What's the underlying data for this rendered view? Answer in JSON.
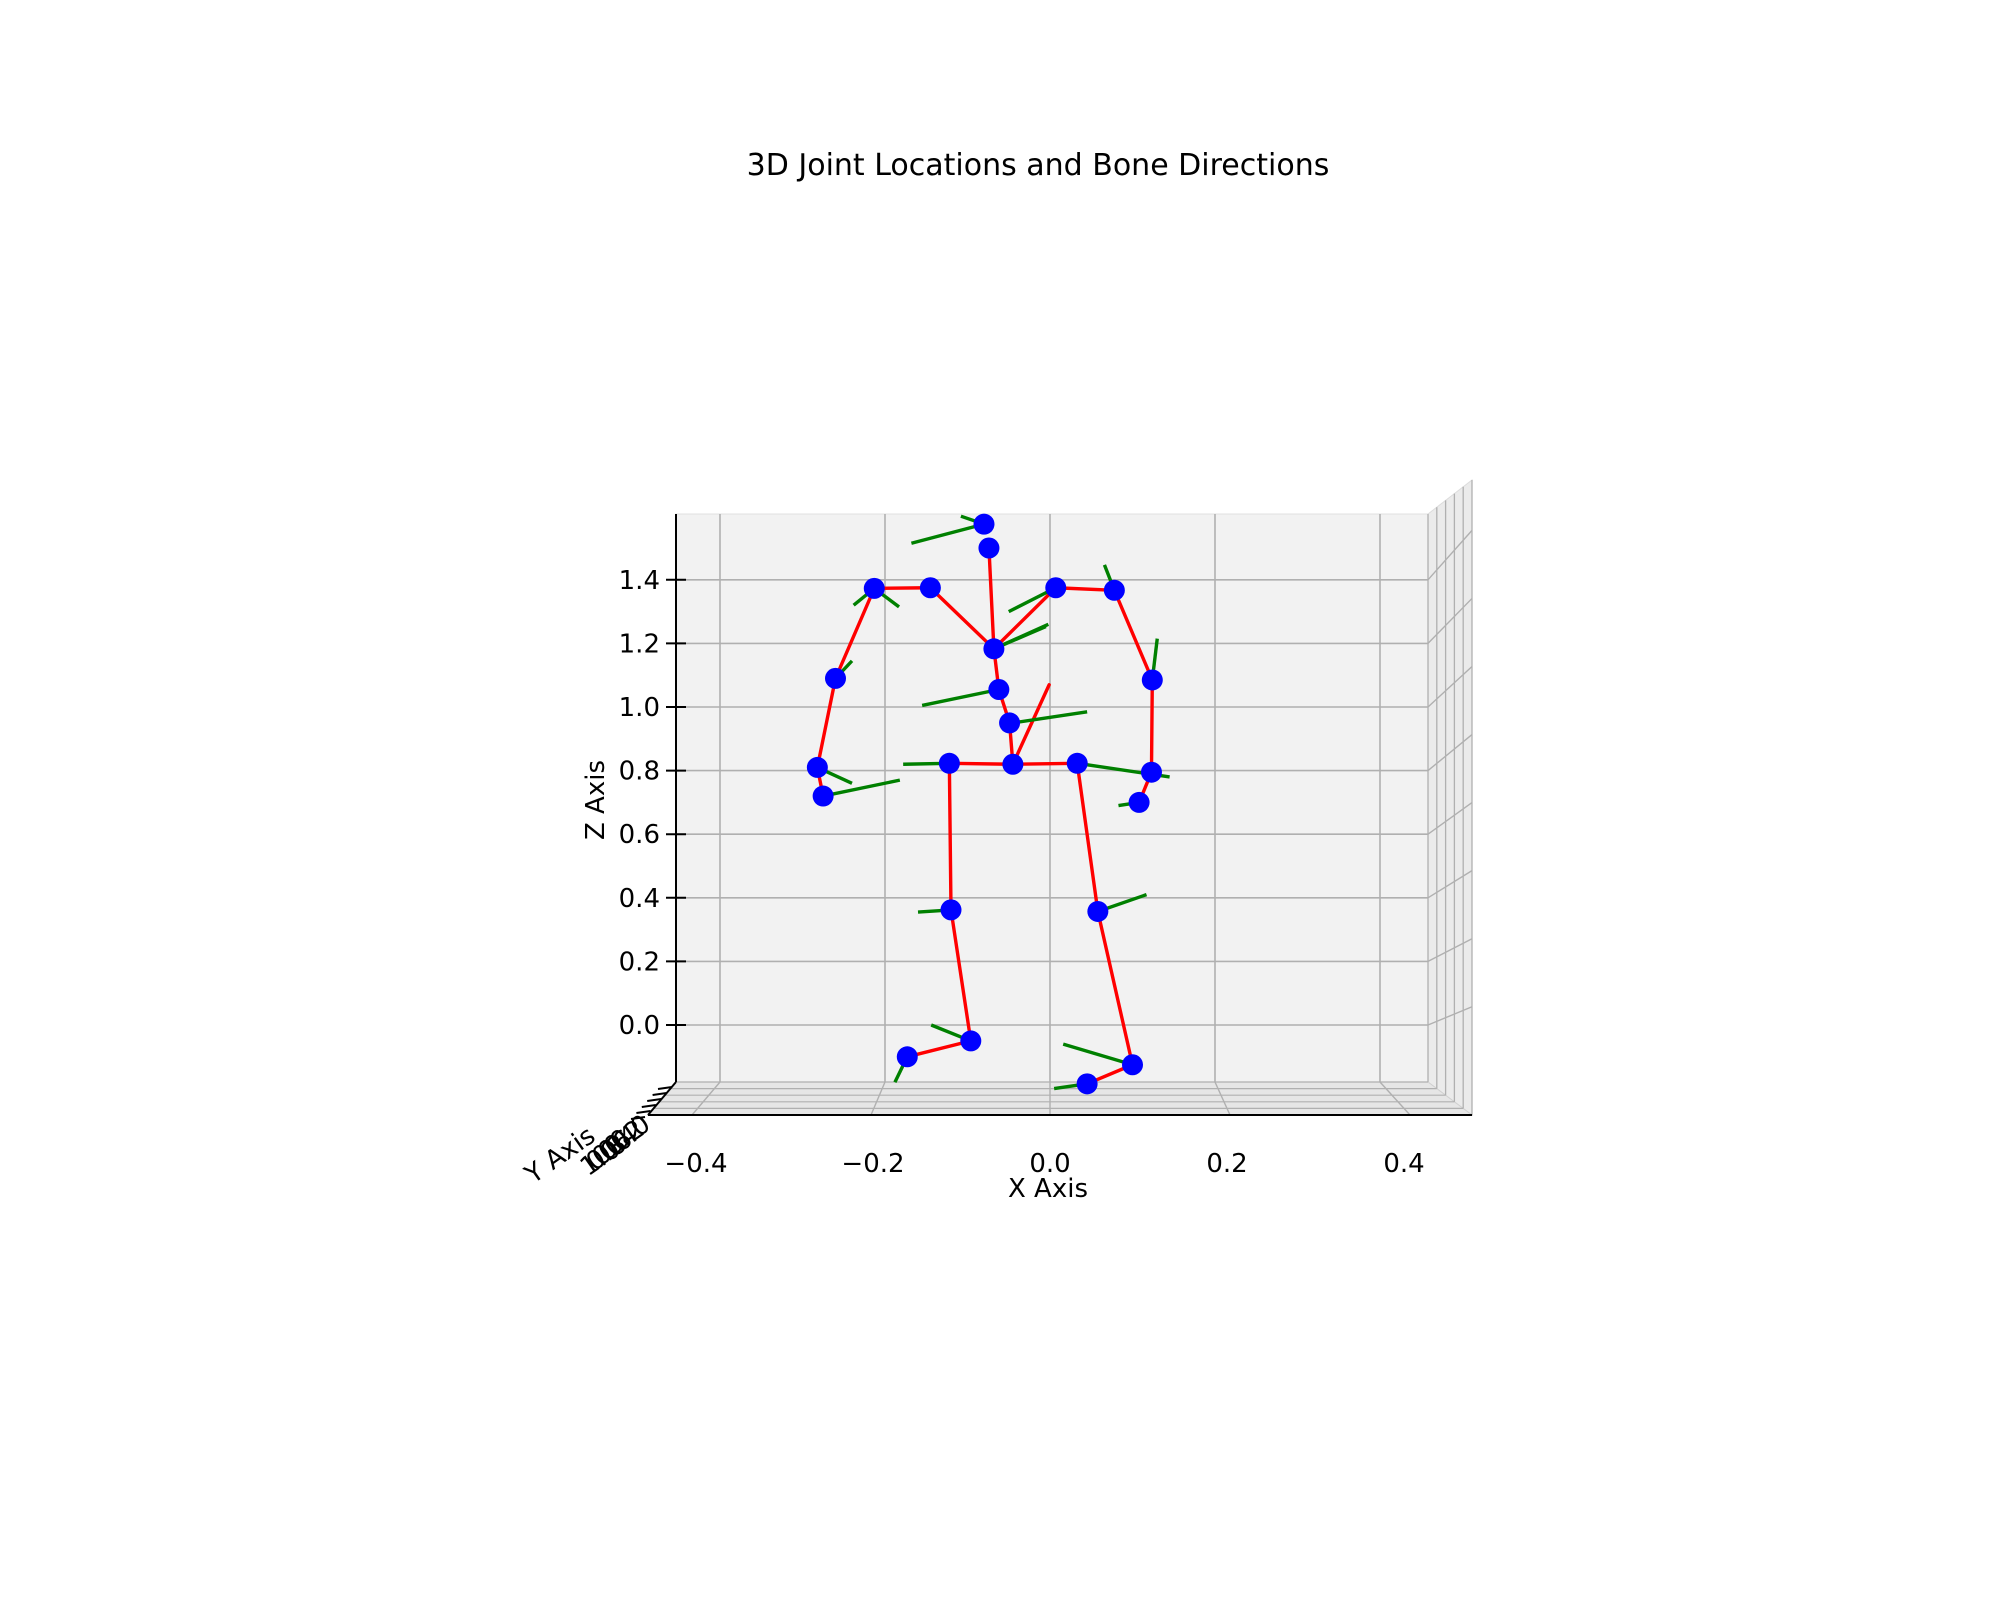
{
  "chart_data": {
    "type": "scatter",
    "projection": "3d",
    "title": "3D Joint Locations and Bone Directions",
    "xlabel": "X Axis",
    "ylabel": "Y Axis",
    "zlabel": "Z Axis",
    "xlim": [
      -0.46,
      0.46
    ],
    "zlim": [
      -0.2,
      1.6
    ],
    "x_ticks": [
      -0.4,
      -0.2,
      0.0,
      0.2,
      0.4
    ],
    "x_tick_labels": [
      "−0.4",
      "−0.2",
      "0.0",
      "0.2",
      "0.4"
    ],
    "z_ticks": [
      0.0,
      0.2,
      0.4,
      0.6,
      0.8,
      1.0,
      1.2,
      1.4
    ],
    "z_tick_labels": [
      "0.0",
      "0.2",
      "0.4",
      "0.6",
      "0.8",
      "1.0",
      "1.2",
      "1.4"
    ],
    "y_tick_labels": [
      "0.0",
      "0.2",
      "0.4",
      "0.6",
      "0.8",
      "1.0"
    ],
    "grid": true,
    "series": [
      {
        "kind": "joints",
        "color": "#0000ff",
        "points": [
          {
            "x": -0.045,
            "z": 0.82
          },
          {
            "x": -0.122,
            "z": 0.823
          },
          {
            "x": -0.12,
            "z": 0.362
          },
          {
            "x": -0.096,
            "z": -0.05
          },
          {
            "x": -0.173,
            "z": -0.1
          },
          {
            "x": 0.033,
            "z": 0.823
          },
          {
            "x": 0.058,
            "z": 0.357
          },
          {
            "x": 0.1,
            "z": -0.125
          },
          {
            "x": 0.045,
            "z": -0.185
          },
          {
            "x": -0.049,
            "z": 0.95
          },
          {
            "x": -0.062,
            "z": 1.055
          },
          {
            "x": -0.068,
            "z": 1.183
          },
          {
            "x": -0.074,
            "z": 1.5
          },
          {
            "x": -0.08,
            "z": 1.575
          },
          {
            "x": -0.145,
            "z": 1.375
          },
          {
            "x": -0.213,
            "z": 1.373
          },
          {
            "x": -0.26,
            "z": 1.09
          },
          {
            "x": -0.282,
            "z": 0.81
          },
          {
            "x": -0.275,
            "z": 0.72
          },
          {
            "x": 0.007,
            "z": 1.375
          },
          {
            "x": 0.078,
            "z": 1.367
          },
          {
            "x": 0.124,
            "z": 1.085
          },
          {
            "x": 0.123,
            "z": 0.795
          },
          {
            "x": 0.108,
            "z": 0.7
          }
        ]
      },
      {
        "kind": "bones",
        "color": "#ff0000",
        "segments": [
          [
            0,
            1
          ],
          [
            1,
            2
          ],
          [
            2,
            3
          ],
          [
            3,
            4
          ],
          [
            0,
            5
          ],
          [
            5,
            6
          ],
          [
            6,
            7
          ],
          [
            7,
            8
          ],
          [
            0,
            9
          ],
          [
            9,
            10
          ],
          [
            10,
            11
          ],
          [
            11,
            12
          ],
          [
            11,
            14
          ],
          [
            14,
            15
          ],
          [
            15,
            16
          ],
          [
            16,
            17
          ],
          [
            17,
            18
          ],
          [
            11,
            19
          ],
          [
            19,
            20
          ],
          [
            20,
            21
          ],
          [
            21,
            22
          ],
          [
            22,
            23
          ]
        ],
        "extra_segments": [
          {
            "from": {
              "x": -0.045,
              "z": 0.82
            },
            "to": {
              "x": -0.001,
              "z": 1.07
            }
          }
        ]
      },
      {
        "kind": "bone_directions",
        "color": "#008000",
        "segments": [
          {
            "from": {
              "x": -0.045,
              "z": 0.95
            },
            "to": {
              "x": 0.045,
              "z": 0.985
            }
          },
          {
            "x0": -0.062,
            "z0": 1.055,
            "x1": -0.155,
            "z1": 1.005
          },
          {
            "x0": -0.068,
            "z0": 1.183,
            "x1": -0.002,
            "z1": 1.26
          },
          {
            "x0": -0.068,
            "z0": 1.183,
            "x1": -0.005,
            "z1": 1.253
          },
          {
            "x0": -0.05,
            "z0": 1.3,
            "x1": 0.007,
            "z1": 1.375
          },
          {
            "x0": -0.08,
            "z0": 1.575,
            "x1": -0.168,
            "z1": 1.515
          },
          {
            "x0": -0.08,
            "z0": 1.575,
            "x1": -0.108,
            "z1": 1.6
          },
          {
            "x0": -0.213,
            "z0": 1.373,
            "x1": -0.238,
            "z1": 1.32
          },
          {
            "x0": -0.213,
            "z0": 1.373,
            "x1": -0.183,
            "z1": 1.315
          },
          {
            "x0": -0.26,
            "z0": 1.09,
            "x1": -0.24,
            "z1": 1.145
          },
          {
            "x0": -0.282,
            "z0": 0.81,
            "x1": -0.24,
            "z1": 0.76
          },
          {
            "x0": -0.275,
            "z0": 0.72,
            "x1": -0.182,
            "z1": 0.77
          },
          {
            "x0": -0.122,
            "z0": 0.823,
            "x1": -0.178,
            "z1": 0.82
          },
          {
            "x0": -0.12,
            "z0": 0.362,
            "x1": -0.16,
            "z1": 0.355
          },
          {
            "x0": -0.096,
            "z0": -0.05,
            "x1": -0.144,
            "z1": 0.0
          },
          {
            "x0": -0.173,
            "z0": -0.1,
            "x1": -0.188,
            "z1": -0.18
          },
          {
            "x0": 0.033,
            "z0": 0.823,
            "x1": 0.145,
            "z1": 0.78
          },
          {
            "x0": 0.058,
            "z0": 0.357,
            "x1": 0.117,
            "z1": 0.41
          },
          {
            "x0": 0.1,
            "z0": -0.125,
            "x1": 0.016,
            "z1": -0.06
          },
          {
            "x0": 0.045,
            "z0": -0.185,
            "x1": 0.005,
            "z1": -0.2
          },
          {
            "x0": 0.078,
            "z0": 1.367,
            "x1": 0.066,
            "z1": 1.447
          },
          {
            "x0": 0.124,
            "z0": 1.085,
            "x1": 0.13,
            "z1": 1.215
          },
          {
            "x0": 0.108,
            "z0": 0.7,
            "x1": 0.083,
            "z1": 0.69
          }
        ]
      }
    ]
  }
}
